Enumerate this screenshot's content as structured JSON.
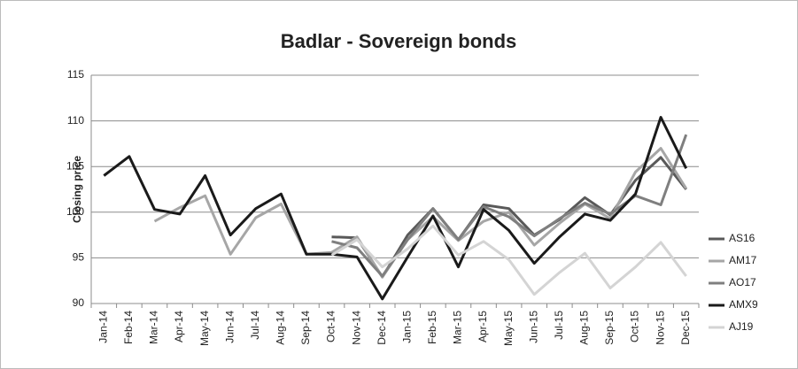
{
  "chart_data": {
    "type": "line",
    "title": "Badlar - Sovereign bonds",
    "y_label": "Closing price",
    "categories": [
      "Jan-14",
      "Feb-14",
      "Mar-14",
      "Apr-14",
      "May-14",
      "Jun-14",
      "Jul-14",
      "Aug-14",
      "Sep-14",
      "Oct-14",
      "Nov-14",
      "Dec-14",
      "Jan-15",
      "Feb-15",
      "Mar-15",
      "Apr-15",
      "May-15",
      "Jun-15",
      "Jul-15",
      "Aug-15",
      "Sep-15",
      "Oct-15",
      "Nov-15",
      "Dec-15"
    ],
    "series": [
      {
        "name": "AS16",
        "color": "#595959",
        "values": [
          null,
          null,
          null,
          null,
          null,
          null,
          null,
          null,
          null,
          97.3,
          97.2,
          92.9,
          97.5,
          100.4,
          97,
          100.8,
          100.4,
          97.5,
          99.2,
          101.6,
          99.7,
          103.5,
          106,
          102.5
        ]
      },
      {
        "name": "AM17",
        "color": "#a6a6a6",
        "values": [
          null,
          null,
          99,
          100.5,
          101.8,
          95.4,
          99.4,
          100.9,
          95.4,
          95.6,
          97.3,
          92.9,
          97,
          99.5,
          96.9,
          99,
          100,
          96.4,
          98.8,
          100.9,
          99.3,
          104.4,
          107,
          102.6
        ]
      },
      {
        "name": "AO17",
        "color": "#7f7f7f",
        "values": [
          null,
          null,
          null,
          null,
          null,
          null,
          null,
          null,
          null,
          96.8,
          96.1,
          93,
          97,
          100.4,
          97,
          100.6,
          99.5,
          97.4,
          99.3,
          101,
          99.8,
          101.8,
          100.8,
          108.5
        ]
      },
      {
        "name": "AMX9",
        "color": "#1a1a1a",
        "values": [
          104,
          106.1,
          100.3,
          99.8,
          104,
          97.5,
          100.4,
          102,
          95.4,
          95.4,
          95.1,
          90.5,
          95.1,
          99.6,
          94,
          100.3,
          98,
          94.4,
          97.3,
          99.8,
          99.1,
          102,
          110.4,
          104.8
        ]
      },
      {
        "name": "AJ19",
        "color": "#d4d4d4",
        "values": [
          null,
          null,
          null,
          null,
          null,
          null,
          null,
          null,
          null,
          95.3,
          97,
          94,
          96,
          98.5,
          95.3,
          96.8,
          94.8,
          91,
          93.4,
          95.5,
          91.7,
          94,
          96.7,
          93
        ]
      }
    ],
    "ylim": [
      90,
      115
    ],
    "yticks": [
      90,
      95,
      100,
      105,
      110,
      115
    ],
    "grid": true,
    "legend": "right"
  }
}
